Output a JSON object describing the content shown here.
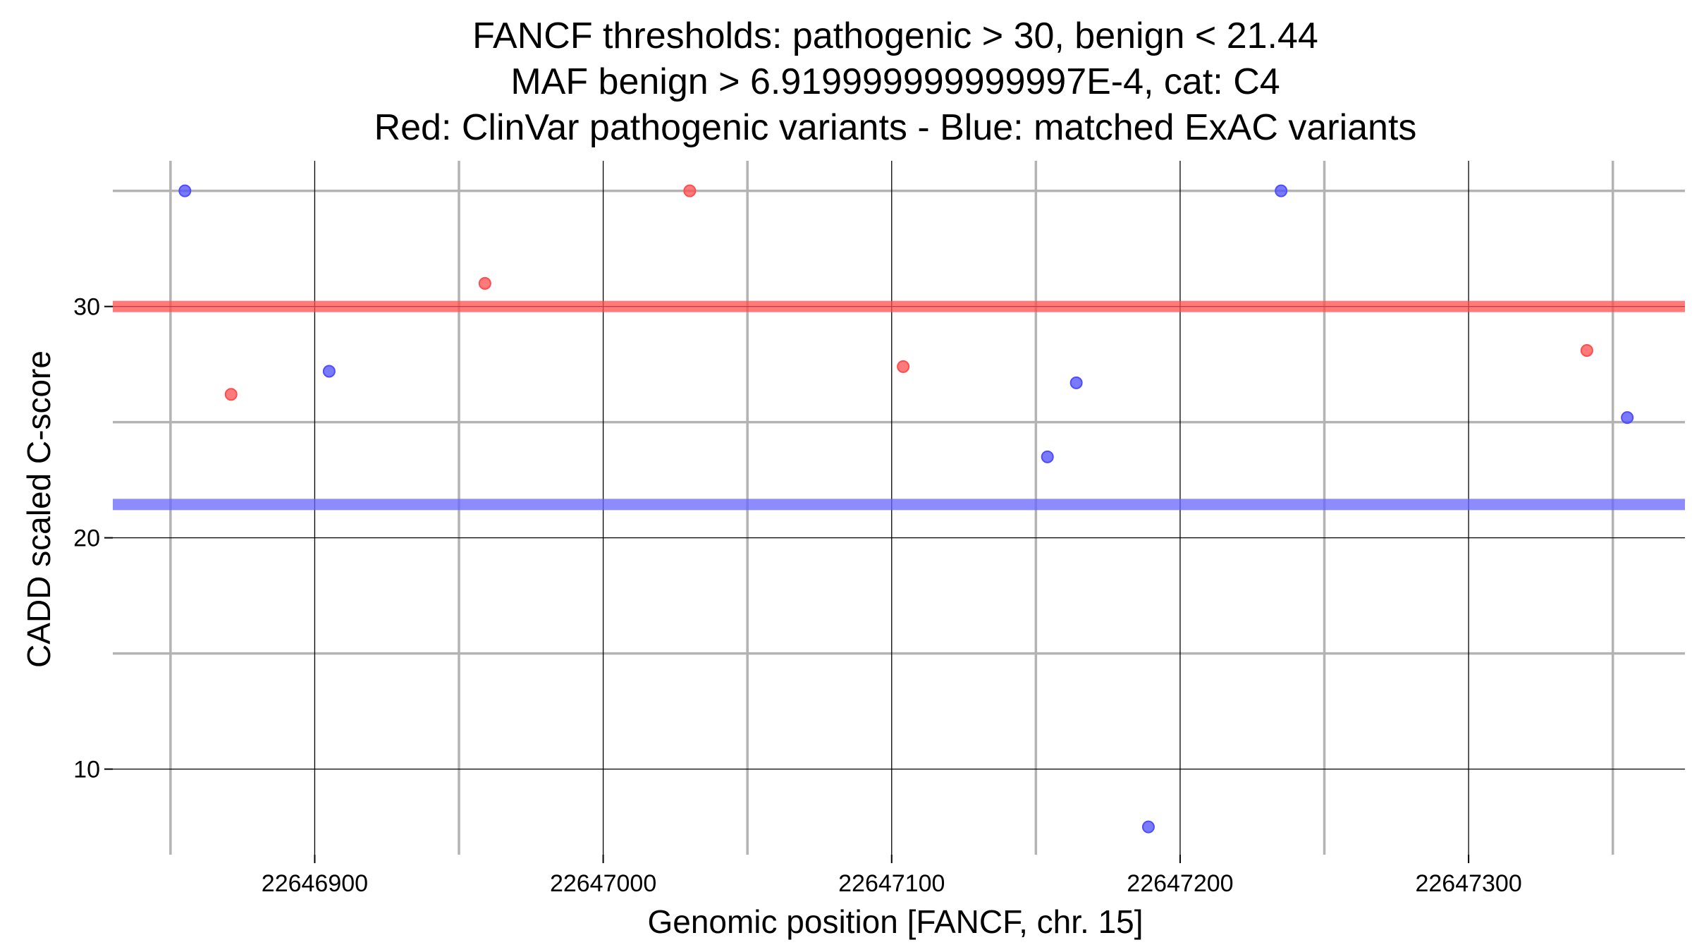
{
  "chart_data": {
    "type": "scatter",
    "title_lines": [
      "FANCF thresholds: pathogenic > 30, benign < 21.44",
      "MAF benign > 6.919999999999997E-4, cat: C4",
      "Red: ClinVar pathogenic variants - Blue: matched ExAC variants"
    ],
    "xlabel": "Genomic position [FANCF, chr. 15]",
    "ylabel": "CADD scaled C-score",
    "xlim": [
      22646830,
      22647375
    ],
    "ylim": [
      6.3,
      36.3
    ],
    "x_ticks": [
      22646900,
      22647000,
      22647100,
      22647200,
      22647300
    ],
    "x_minor_grid": [
      22646850,
      22646950,
      22647050,
      22647150,
      22647250,
      22647350
    ],
    "y_ticks": [
      10,
      20,
      30
    ],
    "y_minor_grid": [
      15,
      25,
      35
    ],
    "thresholds": [
      {
        "name": "pathogenic",
        "value": 30,
        "color": "#ff4d4d"
      },
      {
        "name": "benign",
        "value": 21.44,
        "color": "#6666ff"
      }
    ],
    "series": [
      {
        "color": "#ff4d4d",
        "points": [
          {
            "x": 22646871,
            "y": 26.2
          },
          {
            "x": 22646959,
            "y": 31.0
          },
          {
            "x": 22647030,
            "y": 35.0
          },
          {
            "x": 22647104,
            "y": 27.4
          },
          {
            "x": 22647341,
            "y": 28.1
          }
        ]
      },
      {
        "color": "#4d4dff",
        "points": [
          {
            "x": 22646855,
            "y": 35.0
          },
          {
            "x": 22646905,
            "y": 27.2
          },
          {
            "x": 22647154,
            "y": 23.5
          },
          {
            "x": 22647164,
            "y": 26.7
          },
          {
            "x": 22647189,
            "y": 7.5
          },
          {
            "x": 22647235,
            "y": 35.0
          },
          {
            "x": 22647355,
            "y": 25.2
          }
        ]
      }
    ],
    "grid": true
  }
}
